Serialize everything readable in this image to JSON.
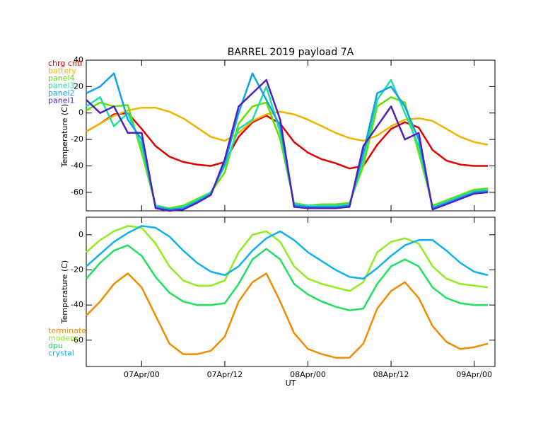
{
  "chart_data": [
    {
      "type": "line",
      "title": "BARREL 2019 payload 7A",
      "ylabel": "Temperature (C)",
      "x": [
        -8,
        -6,
        -4,
        -2,
        0,
        2,
        4,
        6,
        8,
        10,
        12,
        14,
        16,
        18,
        20,
        22,
        24,
        26,
        28,
        30,
        32,
        34,
        36,
        38,
        40,
        42,
        44,
        46,
        48,
        50
      ],
      "xlim": [
        -8,
        51
      ],
      "xticks": [
        0,
        12,
        24,
        36,
        48
      ],
      "ylim": [
        -74,
        40
      ],
      "yticks": [
        40,
        20,
        0,
        -20,
        -40,
        -60
      ],
      "series": [
        {
          "name": "chrg cntl",
          "color": "#e00000",
          "values": [
            -14,
            -8,
            -1,
            0,
            -12,
            -25,
            -33,
            -37,
            -39,
            -40,
            -37,
            -18,
            -7,
            -2,
            -8,
            -22,
            -30,
            -35,
            -38,
            -42,
            -40,
            -24,
            -12,
            -7,
            -11,
            -28,
            -36,
            -39,
            -40,
            -40
          ]
        },
        {
          "name": "battery",
          "color": "#f0b400",
          "values": [
            -14,
            -8,
            -2,
            2,
            4,
            4,
            1,
            -4,
            -11,
            -18,
            -21,
            -15,
            -6,
            -1,
            1,
            -1,
            -5,
            -10,
            -15,
            -19,
            -21,
            -17,
            -10,
            -5,
            -4,
            -6,
            -12,
            -18,
            -22,
            -24
          ]
        },
        {
          "name": "panel4",
          "color": "#66e000",
          "values": [
            2,
            8,
            5,
            6,
            -30,
            -70,
            -72,
            -70,
            -65,
            -60,
            -45,
            -8,
            5,
            8,
            -20,
            -68,
            -70,
            -69,
            -69,
            -68,
            -40,
            5,
            12,
            8,
            -30,
            -70,
            -66,
            -62,
            -58,
            -57
          ]
        },
        {
          "name": "panel3",
          "color": "#20e0a0",
          "values": [
            5,
            12,
            -10,
            0,
            -25,
            -70,
            -73,
            -71,
            -66,
            -60,
            -40,
            -12,
            -5,
            20,
            -15,
            -69,
            -70,
            -70,
            -70,
            -69,
            -35,
            10,
            25,
            0,
            -25,
            -71,
            -67,
            -63,
            -59,
            -58
          ]
        },
        {
          "name": "panel2",
          "color": "#10a0f0",
          "values": [
            15,
            20,
            30,
            -5,
            -20,
            -71,
            -73,
            -72,
            -67,
            -61,
            -38,
            0,
            30,
            10,
            -10,
            -70,
            -71,
            -71,
            -71,
            -70,
            -30,
            15,
            20,
            5,
            -20,
            -72,
            -68,
            -64,
            -60,
            -59
          ]
        },
        {
          "name": "panel1",
          "color": "#5020c0",
          "values": [
            10,
            0,
            5,
            -15,
            -15,
            -72,
            -74,
            -73,
            -68,
            -62,
            -35,
            5,
            15,
            25,
            -5,
            -71,
            -72,
            -72,
            -72,
            -71,
            -25,
            -10,
            5,
            -20,
            -15,
            -73,
            -69,
            -65,
            -61,
            -60
          ]
        }
      ]
    },
    {
      "type": "line",
      "ylabel": "Temperature (C)",
      "xlabel": "UT",
      "x": [
        -8,
        -6,
        -4,
        -2,
        0,
        2,
        4,
        6,
        8,
        10,
        12,
        14,
        16,
        18,
        20,
        22,
        24,
        26,
        28,
        30,
        32,
        34,
        36,
        38,
        40,
        42,
        44,
        46,
        48,
        50
      ],
      "xlim": [
        -8,
        51
      ],
      "xticks": [
        {
          "value": 0,
          "label": "07Apr/00"
        },
        {
          "value": 12,
          "label": "07Apr/12"
        },
        {
          "value": 24,
          "label": "08Apr/00"
        },
        {
          "value": 36,
          "label": "08Apr/12"
        },
        {
          "value": 48,
          "label": "09Apr/00"
        }
      ],
      "ylim": [
        -75,
        10
      ],
      "yticks": [
        0,
        -20,
        -40,
        -60
      ],
      "series": [
        {
          "name": "terminate",
          "color": "#f08c00",
          "values": [
            -46,
            -38,
            -28,
            -22,
            -30,
            -46,
            -62,
            -68,
            -68,
            -66,
            -58,
            -38,
            -27,
            -22,
            -38,
            -56,
            -65,
            -68,
            -70,
            -70,
            -62,
            -42,
            -32,
            -27,
            -36,
            -52,
            -61,
            -65,
            -64,
            -62
          ]
        },
        {
          "name": "modem",
          "color": "#90ee20",
          "values": [
            -10,
            -3,
            2,
            5,
            4,
            -5,
            -18,
            -26,
            -29,
            -29,
            -26,
            -10,
            0,
            2,
            -4,
            -18,
            -25,
            -28,
            -30,
            -32,
            -27,
            -10,
            -4,
            -2,
            -5,
            -18,
            -25,
            -28,
            -29,
            -30
          ]
        },
        {
          "name": "dpu",
          "color": "#20e060",
          "values": [
            -25,
            -16,
            -9,
            -6,
            -12,
            -24,
            -33,
            -38,
            -40,
            -40,
            -39,
            -28,
            -14,
            -8,
            -14,
            -28,
            -34,
            -38,
            -41,
            -43,
            -42,
            -28,
            -18,
            -14,
            -18,
            -30,
            -36,
            -39,
            -40,
            -40
          ]
        },
        {
          "name": "crystal",
          "color": "#10b0f0",
          "values": [
            -18,
            -11,
            -4,
            1,
            5,
            4,
            -1,
            -9,
            -16,
            -21,
            -23,
            -18,
            -9,
            -2,
            2,
            -3,
            -10,
            -15,
            -20,
            -24,
            -25,
            -19,
            -12,
            -6,
            -3,
            -3,
            -9,
            -16,
            -21,
            -23
          ]
        }
      ]
    }
  ]
}
